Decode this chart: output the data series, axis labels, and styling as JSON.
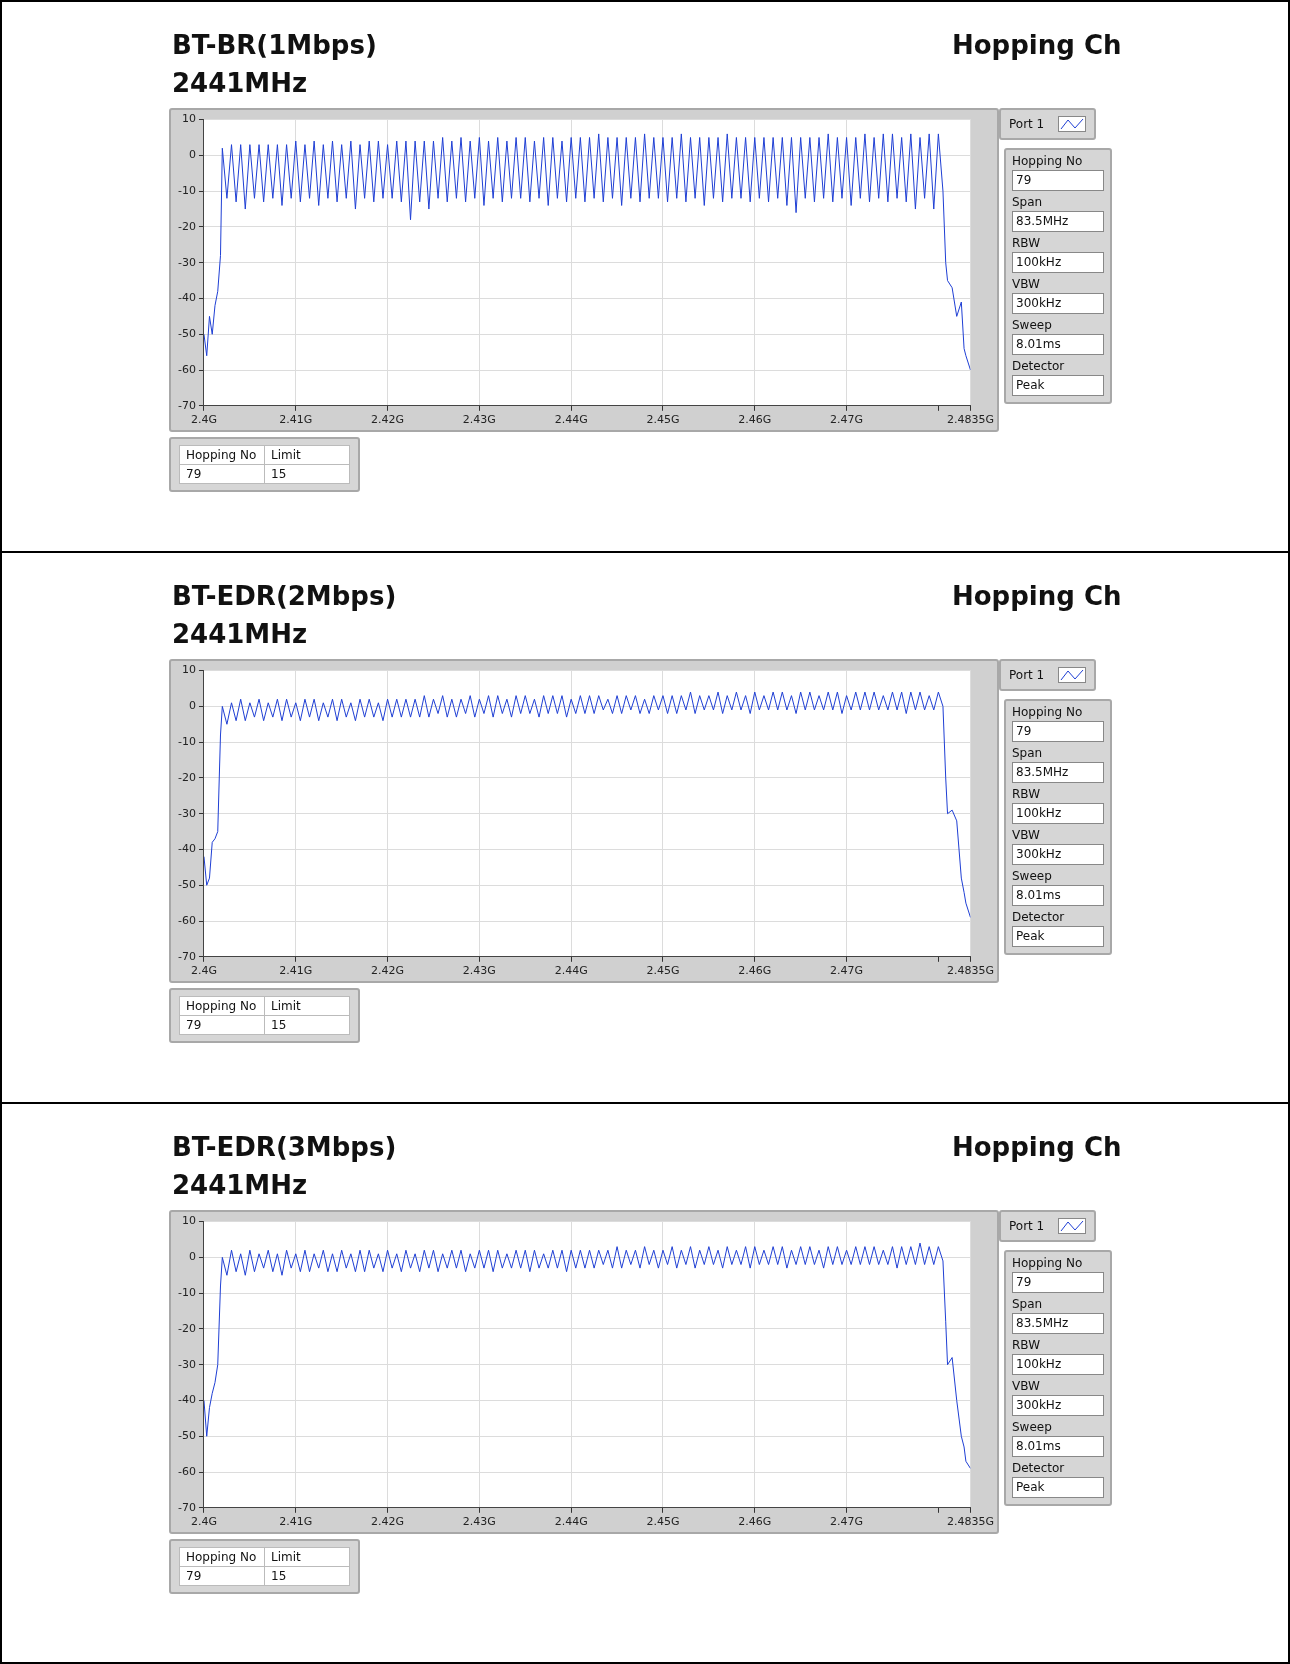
{
  "chart_data": [
    {
      "type": "line",
      "title": "BT-BR(1Mbps)",
      "subtitle": "2441MHz",
      "annotations": [
        "Hopping Ch",
        "Hopping No",
        "79",
        "Span",
        "83.5MHz",
        "RBW",
        "100kHz",
        "VBW",
        "300kHz",
        "Sweep",
        "8.01ms",
        "Detector",
        "Peak",
        "Hopping No",
        "Limit",
        "79",
        "15"
      ],
      "legend": "right",
      "grid": true,
      "xlim": [
        2.4,
        2.4835
      ],
      "ylim": [
        -70,
        10
      ],
      "xticks": [
        {
          "value": 2.4,
          "label": "2.4G"
        },
        {
          "value": 2.41,
          "label": "2.41G"
        },
        {
          "value": 2.42,
          "label": "2.42G"
        },
        {
          "value": 2.43,
          "label": "2.43G"
        },
        {
          "value": 2.44,
          "label": "2.44G"
        },
        {
          "value": 2.45,
          "label": "2.45G"
        },
        {
          "value": 2.46,
          "label": "2.46G"
        },
        {
          "value": 2.47,
          "label": "2.47G"
        },
        {
          "value": 2.48,
          "label": null
        },
        {
          "value": 2.4835,
          "label": "2.4835G"
        }
      ],
      "yticks": [
        -70,
        -60,
        -50,
        -40,
        -30,
        -20,
        -10,
        0,
        10
      ],
      "series": [
        {
          "name": "Port 1",
          "color": "#1f3fd4",
          "x": [
            2.4,
            2.4003,
            2.4006,
            2.4009,
            2.4012,
            2.4015,
            2.4018,
            2.402,
            2.4025,
            2.403,
            2.4035,
            2.404,
            2.4045,
            2.405,
            2.4055,
            2.406,
            2.4065,
            2.407,
            2.4075,
            2.408,
            2.4085,
            2.409,
            2.4095,
            2.41,
            2.4105,
            2.411,
            2.4115,
            2.412,
            2.4125,
            2.413,
            2.4135,
            2.414,
            2.4145,
            2.415,
            2.4155,
            2.416,
            2.4165,
            2.417,
            2.4175,
            2.418,
            2.4185,
            2.419,
            2.4195,
            2.42,
            2.4205,
            2.421,
            2.4215,
            2.422,
            2.4225,
            2.423,
            2.4235,
            2.424,
            2.4245,
            2.425,
            2.4255,
            2.426,
            2.4265,
            2.427,
            2.4275,
            2.428,
            2.4285,
            2.429,
            2.4295,
            2.43,
            2.4305,
            2.431,
            2.4315,
            2.432,
            2.4325,
            2.433,
            2.4335,
            2.434,
            2.4345,
            2.435,
            2.4355,
            2.436,
            2.4365,
            2.437,
            2.4375,
            2.438,
            2.4385,
            2.439,
            2.4395,
            2.44,
            2.4405,
            2.441,
            2.4415,
            2.442,
            2.4425,
            2.443,
            2.4435,
            2.444,
            2.4445,
            2.445,
            2.4455,
            2.446,
            2.4465,
            2.447,
            2.4475,
            2.448,
            2.4485,
            2.449,
            2.4495,
            2.45,
            2.4505,
            2.451,
            2.4515,
            2.452,
            2.4525,
            2.453,
            2.4535,
            2.454,
            2.4545,
            2.455,
            2.4555,
            2.456,
            2.4565,
            2.457,
            2.4575,
            2.458,
            2.4585,
            2.459,
            2.4595,
            2.46,
            2.4605,
            2.461,
            2.4615,
            2.462,
            2.4625,
            2.463,
            2.4635,
            2.464,
            2.4645,
            2.465,
            2.4655,
            2.466,
            2.4665,
            2.467,
            2.4675,
            2.468,
            2.4685,
            2.469,
            2.4695,
            2.47,
            2.4705,
            2.471,
            2.4715,
            2.472,
            2.4725,
            2.473,
            2.4735,
            2.474,
            2.4745,
            2.475,
            2.4755,
            2.476,
            2.4765,
            2.477,
            2.4775,
            2.478,
            2.4785,
            2.479,
            2.4795,
            2.48,
            2.4805,
            2.4808,
            2.481,
            2.4815,
            2.482,
            2.4825,
            2.4828,
            2.483,
            2.4835
          ],
          "values": [
            -50,
            -56,
            -45,
            -50,
            -42,
            -38,
            -28,
            2,
            -12,
            3,
            -13,
            3,
            -15,
            3,
            -12,
            3,
            -13,
            3,
            -12,
            3,
            -14,
            3,
            -12,
            4,
            -13,
            3,
            -12,
            4,
            -14,
            3,
            -12,
            4,
            -13,
            3,
            -12,
            4,
            -15,
            3,
            -12,
            4,
            -13,
            4,
            -12,
            3,
            -12,
            4,
            -13,
            4,
            -18,
            4,
            -13,
            4,
            -15,
            4,
            -12,
            5,
            -13,
            4,
            -12,
            5,
            -13,
            4,
            -12,
            5,
            -14,
            4,
            -12,
            5,
            -13,
            4,
            -12,
            5,
            -12,
            5,
            -13,
            4,
            -12,
            5,
            -14,
            5,
            -12,
            4,
            -13,
            5,
            -12,
            5,
            -13,
            5,
            -12,
            6,
            -13,
            5,
            -12,
            5,
            -14,
            5,
            -12,
            5,
            -13,
            6,
            -12,
            5,
            -12,
            5,
            -13,
            5,
            -12,
            6,
            -13,
            5,
            -12,
            5,
            -14,
            5,
            -12,
            5,
            -13,
            6,
            -12,
            5,
            -12,
            5,
            -13,
            5,
            -12,
            5,
            -13,
            5,
            -12,
            5,
            -14,
            5,
            -16,
            5,
            -12,
            5,
            -13,
            5,
            -12,
            6,
            -13,
            5,
            -12,
            5,
            -14,
            5,
            -12,
            6,
            -13,
            5,
            -12,
            6,
            -13,
            6,
            -12,
            5,
            -13,
            6,
            -15,
            5,
            -12,
            6,
            -15,
            6,
            -10,
            -30,
            -35,
            -37,
            -45,
            -41,
            -54,
            -56,
            -60
          ]
        }
      ]
    },
    {
      "type": "line",
      "title": "BT-EDR(2Mbps)",
      "subtitle": "2441MHz",
      "annotations": [
        "Hopping Ch",
        "Hopping No",
        "79",
        "Span",
        "83.5MHz",
        "RBW",
        "100kHz",
        "VBW",
        "300kHz",
        "Sweep",
        "8.01ms",
        "Detector",
        "Peak",
        "Hopping No",
        "Limit",
        "79",
        "15"
      ],
      "legend": "right",
      "grid": true,
      "xlim": [
        2.4,
        2.4835
      ],
      "ylim": [
        -70,
        10
      ],
      "xticks": [
        {
          "value": 2.4,
          "label": "2.4G"
        },
        {
          "value": 2.41,
          "label": "2.41G"
        },
        {
          "value": 2.42,
          "label": "2.42G"
        },
        {
          "value": 2.43,
          "label": "2.43G"
        },
        {
          "value": 2.44,
          "label": "2.44G"
        },
        {
          "value": 2.45,
          "label": "2.45G"
        },
        {
          "value": 2.46,
          "label": "2.46G"
        },
        {
          "value": 2.47,
          "label": "2.47G"
        },
        {
          "value": 2.48,
          "label": null
        },
        {
          "value": 2.4835,
          "label": "2.4835G"
        }
      ],
      "yticks": [
        -70,
        -60,
        -50,
        -40,
        -30,
        -20,
        -10,
        0,
        10
      ],
      "series": [
        {
          "name": "Port 1",
          "color": "#1f3fd4",
          "x": [
            2.4,
            2.4003,
            2.4006,
            2.4009,
            2.4012,
            2.4015,
            2.4018,
            2.402,
            2.4025,
            2.403,
            2.4035,
            2.404,
            2.4045,
            2.405,
            2.4055,
            2.406,
            2.4065,
            2.407,
            2.4075,
            2.408,
            2.4085,
            2.409,
            2.4095,
            2.41,
            2.4105,
            2.411,
            2.4115,
            2.412,
            2.4125,
            2.413,
            2.4135,
            2.414,
            2.4145,
            2.415,
            2.4155,
            2.416,
            2.4165,
            2.417,
            2.4175,
            2.418,
            2.4185,
            2.419,
            2.4195,
            2.42,
            2.4205,
            2.421,
            2.4215,
            2.422,
            2.4225,
            2.423,
            2.4235,
            2.424,
            2.4245,
            2.425,
            2.4255,
            2.426,
            2.4265,
            2.427,
            2.4275,
            2.428,
            2.4285,
            2.429,
            2.4295,
            2.43,
            2.4305,
            2.431,
            2.4315,
            2.432,
            2.4325,
            2.433,
            2.4335,
            2.434,
            2.4345,
            2.435,
            2.4355,
            2.436,
            2.4365,
            2.437,
            2.4375,
            2.438,
            2.4385,
            2.439,
            2.4395,
            2.44,
            2.4405,
            2.441,
            2.4415,
            2.442,
            2.4425,
            2.443,
            2.4435,
            2.444,
            2.4445,
            2.445,
            2.4455,
            2.446,
            2.4465,
            2.447,
            2.4475,
            2.448,
            2.4485,
            2.449,
            2.4495,
            2.45,
            2.4505,
            2.451,
            2.4515,
            2.452,
            2.4525,
            2.453,
            2.4535,
            2.454,
            2.4545,
            2.455,
            2.4555,
            2.456,
            2.4565,
            2.457,
            2.4575,
            2.458,
            2.4585,
            2.459,
            2.4595,
            2.46,
            2.4605,
            2.461,
            2.4615,
            2.462,
            2.4625,
            2.463,
            2.4635,
            2.464,
            2.4645,
            2.465,
            2.4655,
            2.466,
            2.4665,
            2.467,
            2.4675,
            2.468,
            2.4685,
            2.469,
            2.4695,
            2.47,
            2.4705,
            2.471,
            2.4715,
            2.472,
            2.4725,
            2.473,
            2.4735,
            2.474,
            2.4745,
            2.475,
            2.4755,
            2.476,
            2.4765,
            2.477,
            2.4775,
            2.478,
            2.4785,
            2.479,
            2.4795,
            2.48,
            2.4805,
            2.4808,
            2.481,
            2.4815,
            2.482,
            2.4825,
            2.4828,
            2.483,
            2.4835
          ],
          "values": [
            -42,
            -50,
            -48,
            -38,
            -37,
            -35,
            -8,
            0,
            -5,
            1,
            -4,
            2,
            -4,
            1,
            -3,
            2,
            -4,
            1,
            -3,
            2,
            -4,
            2,
            -3,
            1,
            -4,
            2,
            -3,
            2,
            -4,
            1,
            -3,
            2,
            -4,
            2,
            -3,
            1,
            -4,
            2,
            -3,
            2,
            -3,
            1,
            -4,
            2,
            -3,
            2,
            -3,
            2,
            -3,
            2,
            -3,
            3,
            -3,
            2,
            -2,
            3,
            -3,
            2,
            -3,
            2,
            -2,
            3,
            -3,
            2,
            -2,
            3,
            -3,
            3,
            -2,
            2,
            -3,
            3,
            -2,
            3,
            -2,
            2,
            -3,
            3,
            -2,
            3,
            -2,
            3,
            -3,
            2,
            -2,
            3,
            -2,
            3,
            -2,
            3,
            -1,
            2,
            -2,
            3,
            -2,
            3,
            -1,
            3,
            -2,
            2,
            -2,
            3,
            -1,
            3,
            -2,
            3,
            -2,
            3,
            -1,
            4,
            -2,
            3,
            -1,
            3,
            -1,
            4,
            -2,
            3,
            -1,
            4,
            -1,
            3,
            -2,
            4,
            -1,
            3,
            -1,
            4,
            -1,
            4,
            -1,
            3,
            -2,
            4,
            -1,
            4,
            -1,
            3,
            -1,
            4,
            -1,
            4,
            -2,
            3,
            -1,
            4,
            -1,
            4,
            -1,
            4,
            -1,
            3,
            -1,
            4,
            -1,
            4,
            -2,
            4,
            -1,
            4,
            -1,
            3,
            -1,
            4,
            0,
            -20,
            -30,
            -29,
            -32,
            -48,
            -52,
            -55,
            -59
          ]
        }
      ]
    },
    {
      "type": "line",
      "title": "BT-EDR(3Mbps)",
      "subtitle": "2441MHz",
      "annotations": [
        "Hopping Ch",
        "Hopping No",
        "79",
        "Span",
        "83.5MHz",
        "RBW",
        "100kHz",
        "VBW",
        "300kHz",
        "Sweep",
        "8.01ms",
        "Detector",
        "Peak",
        "Hopping No",
        "Limit",
        "79",
        "15"
      ],
      "legend": "right",
      "grid": true,
      "xlim": [
        2.4,
        2.4835
      ],
      "ylim": [
        -70,
        10
      ],
      "xticks": [
        {
          "value": 2.4,
          "label": "2.4G"
        },
        {
          "value": 2.41,
          "label": "2.41G"
        },
        {
          "value": 2.42,
          "label": "2.42G"
        },
        {
          "value": 2.43,
          "label": "2.43G"
        },
        {
          "value": 2.44,
          "label": "2.44G"
        },
        {
          "value": 2.45,
          "label": "2.45G"
        },
        {
          "value": 2.46,
          "label": "2.46G"
        },
        {
          "value": 2.47,
          "label": "2.47G"
        },
        {
          "value": 2.48,
          "label": null
        },
        {
          "value": 2.4835,
          "label": "2.4835G"
        }
      ],
      "yticks": [
        -70,
        -60,
        -50,
        -40,
        -30,
        -20,
        -10,
        0,
        10
      ],
      "series": [
        {
          "name": "Port 1",
          "color": "#1f3fd4",
          "x": [
            2.4,
            2.4003,
            2.4006,
            2.4009,
            2.4012,
            2.4015,
            2.4018,
            2.402,
            2.4025,
            2.403,
            2.4035,
            2.404,
            2.4045,
            2.405,
            2.4055,
            2.406,
            2.4065,
            2.407,
            2.4075,
            2.408,
            2.4085,
            2.409,
            2.4095,
            2.41,
            2.4105,
            2.411,
            2.4115,
            2.412,
            2.4125,
            2.413,
            2.4135,
            2.414,
            2.4145,
            2.415,
            2.4155,
            2.416,
            2.4165,
            2.417,
            2.4175,
            2.418,
            2.4185,
            2.419,
            2.4195,
            2.42,
            2.4205,
            2.421,
            2.4215,
            2.422,
            2.4225,
            2.423,
            2.4235,
            2.424,
            2.4245,
            2.425,
            2.4255,
            2.426,
            2.4265,
            2.427,
            2.4275,
            2.428,
            2.4285,
            2.429,
            2.4295,
            2.43,
            2.4305,
            2.431,
            2.4315,
            2.432,
            2.4325,
            2.433,
            2.4335,
            2.434,
            2.4345,
            2.435,
            2.4355,
            2.436,
            2.4365,
            2.437,
            2.4375,
            2.438,
            2.4385,
            2.439,
            2.4395,
            2.44,
            2.4405,
            2.441,
            2.4415,
            2.442,
            2.4425,
            2.443,
            2.4435,
            2.444,
            2.4445,
            2.445,
            2.4455,
            2.446,
            2.4465,
            2.447,
            2.4475,
            2.448,
            2.4485,
            2.449,
            2.4495,
            2.45,
            2.4505,
            2.451,
            2.4515,
            2.452,
            2.4525,
            2.453,
            2.4535,
            2.454,
            2.4545,
            2.455,
            2.4555,
            2.456,
            2.4565,
            2.457,
            2.4575,
            2.458,
            2.4585,
            2.459,
            2.4595,
            2.46,
            2.4605,
            2.461,
            2.4615,
            2.462,
            2.4625,
            2.463,
            2.4635,
            2.464,
            2.4645,
            2.465,
            2.4655,
            2.466,
            2.4665,
            2.467,
            2.4675,
            2.468,
            2.4685,
            2.469,
            2.4695,
            2.47,
            2.4705,
            2.471,
            2.4715,
            2.472,
            2.4725,
            2.473,
            2.4735,
            2.474,
            2.4745,
            2.475,
            2.4755,
            2.476,
            2.4765,
            2.477,
            2.4775,
            2.478,
            2.4785,
            2.479,
            2.4795,
            2.48,
            2.4805,
            2.4808,
            2.481,
            2.4815,
            2.482,
            2.4825,
            2.4828,
            2.483,
            2.4835
          ],
          "values": [
            -40,
            -50,
            -42,
            -38,
            -35,
            -30,
            -8,
            0,
            -5,
            2,
            -4,
            1,
            -5,
            2,
            -4,
            1,
            -3,
            2,
            -4,
            1,
            -5,
            2,
            -3,
            1,
            -4,
            2,
            -4,
            1,
            -3,
            2,
            -4,
            1,
            -4,
            2,
            -3,
            1,
            -4,
            2,
            -4,
            2,
            -3,
            1,
            -4,
            2,
            -3,
            1,
            -4,
            2,
            -3,
            1,
            -4,
            2,
            -3,
            2,
            -4,
            1,
            -3,
            2,
            -3,
            2,
            -4,
            1,
            -3,
            2,
            -3,
            2,
            -4,
            2,
            -3,
            1,
            -3,
            2,
            -3,
            2,
            -4,
            2,
            -3,
            1,
            -3,
            2,
            -3,
            2,
            -4,
            2,
            -3,
            2,
            -3,
            2,
            -3,
            2,
            -2,
            2,
            -3,
            3,
            -3,
            2,
            -2,
            2,
            -3,
            3,
            -2,
            2,
            -3,
            2,
            -2,
            3,
            -3,
            2,
            -2,
            3,
            -3,
            2,
            -2,
            3,
            -2,
            2,
            -3,
            3,
            -2,
            2,
            -2,
            3,
            -3,
            3,
            -2,
            2,
            -2,
            3,
            -2,
            3,
            -3,
            2,
            -2,
            3,
            -2,
            3,
            -2,
            2,
            -3,
            3,
            -2,
            3,
            -2,
            2,
            -2,
            3,
            -2,
            3,
            -2,
            3,
            -2,
            2,
            -2,
            3,
            -3,
            3,
            -2,
            3,
            -2,
            4,
            -2,
            3,
            -2,
            3,
            -1,
            -18,
            -30,
            -28,
            -40,
            -50,
            -53,
            -57,
            -59
          ]
        }
      ]
    }
  ]
}
